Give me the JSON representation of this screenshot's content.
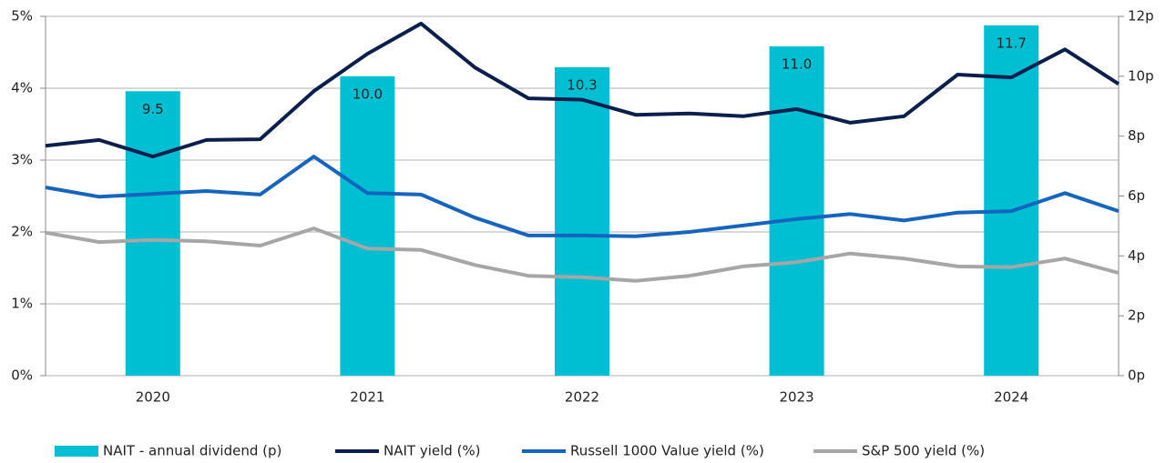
{
  "chart_data": {
    "type": "combo",
    "categories": [
      null,
      null,
      "2020",
      null,
      null,
      null,
      "2021",
      null,
      null,
      null,
      "2022",
      null,
      null,
      null,
      "2023",
      null,
      null,
      null,
      "2024",
      null,
      null
    ],
    "ylim": [
      0,
      5
    ],
    "yticks": [
      {
        "value": 0,
        "label": "0%"
      },
      {
        "value": 1,
        "label": "1%"
      },
      {
        "value": 2,
        "label": "2%"
      },
      {
        "value": 3,
        "label": "3%"
      },
      {
        "value": 4,
        "label": "4%"
      },
      {
        "value": 5,
        "label": "5%"
      }
    ],
    "y2lim": [
      0,
      12
    ],
    "y2ticks": [
      {
        "value": 0,
        "label": "0p"
      },
      {
        "value": 2,
        "label": "2p"
      },
      {
        "value": 4,
        "label": "4p"
      },
      {
        "value": 6,
        "label": "6p"
      },
      {
        "value": 8,
        "label": "8p"
      },
      {
        "value": 10,
        "label": "10p"
      },
      {
        "value": 12,
        "label": "12p"
      }
    ],
    "grid": true,
    "legend": "bottom",
    "series": [
      {
        "name": "NAIT - annual dividend (p)",
        "type": "bar",
        "axis": "y2",
        "color": "#00bfd3",
        "values": [
          null,
          null,
          9.5,
          null,
          null,
          null,
          10.0,
          null,
          null,
          null,
          10.3,
          null,
          null,
          null,
          11.0,
          null,
          null,
          null,
          11.7,
          null,
          null
        ],
        "value_labels": [
          null,
          null,
          "9.5",
          null,
          null,
          null,
          "10.0",
          null,
          null,
          null,
          "10.3",
          null,
          null,
          null,
          "11.0",
          null,
          null,
          null,
          "11.7",
          null,
          null
        ]
      },
      {
        "name": "NAIT yield (%)",
        "type": "line",
        "color": "#0b1f4e",
        "values": [
          3.2,
          3.28,
          3.05,
          3.28,
          3.29,
          3.96,
          4.48,
          4.9,
          4.29,
          3.86,
          3.84,
          3.63,
          3.65,
          3.61,
          3.71,
          3.52,
          3.61,
          4.19,
          4.15,
          4.54,
          4.06
        ]
      },
      {
        "name": "Russell 1000 Value yield (%)",
        "type": "line",
        "color": "#1565c0",
        "values": [
          2.62,
          2.49,
          2.53,
          2.57,
          2.52,
          3.05,
          2.54,
          2.52,
          2.2,
          1.95,
          1.95,
          1.94,
          2.0,
          2.09,
          2.18,
          2.25,
          2.16,
          2.27,
          2.29,
          2.54,
          2.29
        ]
      },
      {
        "name": "S&P 500 yield (%)",
        "type": "line",
        "color": "#a6a6a6",
        "values": [
          1.99,
          1.86,
          1.89,
          1.87,
          1.81,
          2.05,
          1.77,
          1.75,
          1.54,
          1.39,
          1.37,
          1.32,
          1.39,
          1.52,
          1.58,
          1.7,
          1.63,
          1.52,
          1.51,
          1.63,
          1.43
        ]
      }
    ]
  }
}
